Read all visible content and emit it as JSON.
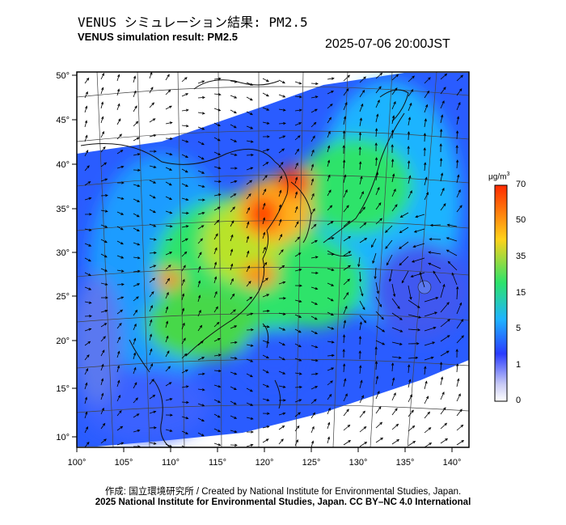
{
  "header": {
    "title_jp": "VENUS シミュレーション結果: PM2.5",
    "title_en": "VENUS simulation result: PM2.5",
    "timestamp": "2025-07-06 20:00JST"
  },
  "map": {
    "lon_ticks": [
      "100°",
      "105°",
      "110°",
      "115°",
      "120°",
      "125°",
      "130°",
      "135°",
      "140°"
    ],
    "lat_ticks": [
      "50°",
      "45°",
      "40°",
      "35°",
      "30°",
      "25°",
      "20°",
      "15°",
      "10°"
    ],
    "lon_range": [
      100,
      141
    ],
    "lat_range": [
      9,
      51
    ],
    "layers": [
      "PM2.5 concentration field",
      "wind vectors",
      "coastlines",
      "graticule"
    ]
  },
  "colorbar": {
    "unit": "μg/m",
    "unit_sup": "3",
    "ticks": [
      "70",
      "50",
      "35",
      "15",
      "5",
      "1",
      "0"
    ],
    "colors": [
      "#ffffff",
      "#2a3cff",
      "#1fb4ff",
      "#2de36a",
      "#ffd21a",
      "#ff2a00"
    ]
  },
  "footer": {
    "credit_line": "作成: 国立環境研究所 / Created by National Institute for Environmental Studies, Japan.",
    "copyright_line": "2025 National Institute for Environmental Studies, Japan. CC BY–NC 4.0 International"
  }
}
